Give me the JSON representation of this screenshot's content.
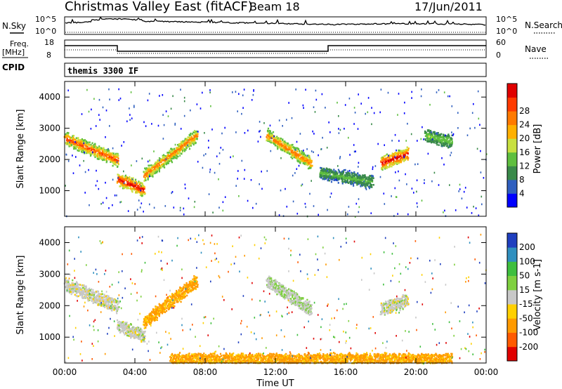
{
  "header": {
    "title": "Christmas Valley East (fitACF)",
    "beam": "Beam 18",
    "date": "17/Jun/2011"
  },
  "sky_panel": {
    "left_label": "N.Sky",
    "left_ticks": [
      "10^5",
      "10^0"
    ],
    "right_label": "N.Search",
    "right_ticks": [
      "10^5",
      "10^0"
    ]
  },
  "freq_panel": {
    "left_label_1": "Freq.",
    "left_label_2": "[MHz]",
    "left_ticks": [
      "18",
      "8"
    ],
    "right_label": "Nave",
    "right_ticks": [
      "60",
      "0"
    ]
  },
  "cpid_panel": {
    "label": "CPID",
    "text": "themis 3300 IF"
  },
  "chart_data": [
    {
      "type": "heatmap",
      "name": "power",
      "ylabel": "Slant Range [km]",
      "yticks": [
        "1000",
        "2000",
        "3000",
        "4000"
      ],
      "ylim": [
        180,
        4500
      ],
      "xlim_hours": [
        0,
        24
      ],
      "colorbar": {
        "label": "Power [dB]",
        "ticks": [
          "4",
          "8",
          "12",
          "16",
          "20",
          "24",
          "28"
        ],
        "colors": [
          "#0000ff",
          "#2f5fbf",
          "#3a8a4a",
          "#5fbf3f",
          "#c8e040",
          "#ffb000",
          "#ff7a00",
          "#ff3a00",
          "#e00000"
        ]
      },
      "features": [
        {
          "hours": [
            0.0,
            3.0
          ],
          "range_km": [
            2700,
            2000
          ],
          "power_db": 24
        },
        {
          "hours": [
            3.0,
            4.5
          ],
          "range_km": [
            1400,
            1050
          ],
          "power_db": 28
        },
        {
          "hours": [
            4.5,
            7.5
          ],
          "range_km": [
            1500,
            2800
          ],
          "power_db": 22
        },
        {
          "hours": [
            11.5,
            14.0
          ],
          "range_km": [
            2800,
            1900
          ],
          "power_db": 22
        },
        {
          "hours": [
            14.5,
            17.5
          ],
          "range_km": [
            1600,
            1300
          ],
          "power_db": 10
        },
        {
          "hours": [
            18.0,
            19.5
          ],
          "range_km": [
            1900,
            2200
          ],
          "power_db": 28
        },
        {
          "hours": [
            20.5,
            22.0
          ],
          "range_km": [
            2800,
            2600
          ],
          "power_db": 12
        }
      ]
    },
    {
      "type": "heatmap",
      "name": "velocity",
      "ylabel": "Slant Range [km]",
      "yticks": [
        "1000",
        "2000",
        "3000",
        "4000"
      ],
      "ylim": [
        180,
        4500
      ],
      "xlim_hours": [
        0,
        24
      ],
      "xticks": [
        "00:00",
        "04:00",
        "08:00",
        "12:00",
        "16:00",
        "20:00",
        "00:00"
      ],
      "xlabel": "Time UT",
      "colorbar": {
        "label": "Velocity [m s-1]",
        "ticks": [
          "200",
          "100",
          "50",
          "15",
          "-15",
          "-50",
          "-100",
          "-200"
        ],
        "colors": [
          "#1f3fbf",
          "#2f8fbf",
          "#3fbf3f",
          "#7fd040",
          "#c8c8c8",
          "#ffd000",
          "#ff9a00",
          "#ff5a00",
          "#e00000"
        ]
      },
      "features": [
        {
          "hours": [
            0.0,
            3.0
          ],
          "range_km": [
            2700,
            2000
          ],
          "velocity_ms": 0
        },
        {
          "hours": [
            3.0,
            4.5
          ],
          "range_km": [
            1400,
            1050
          ],
          "velocity_ms": 0
        },
        {
          "hours": [
            4.5,
            7.5
          ],
          "range_km": [
            1500,
            2800
          ],
          "velocity_ms": -40
        },
        {
          "hours": [
            11.5,
            14.0
          ],
          "range_km": [
            2800,
            1900
          ],
          "velocity_ms": 10
        },
        {
          "hours": [
            18.0,
            19.5
          ],
          "range_km": [
            1900,
            2200
          ],
          "velocity_ms": 0
        },
        {
          "hours": [
            6.0,
            22.0
          ],
          "range_km": [
            300,
            300
          ],
          "velocity_ms": -40
        }
      ]
    }
  ]
}
